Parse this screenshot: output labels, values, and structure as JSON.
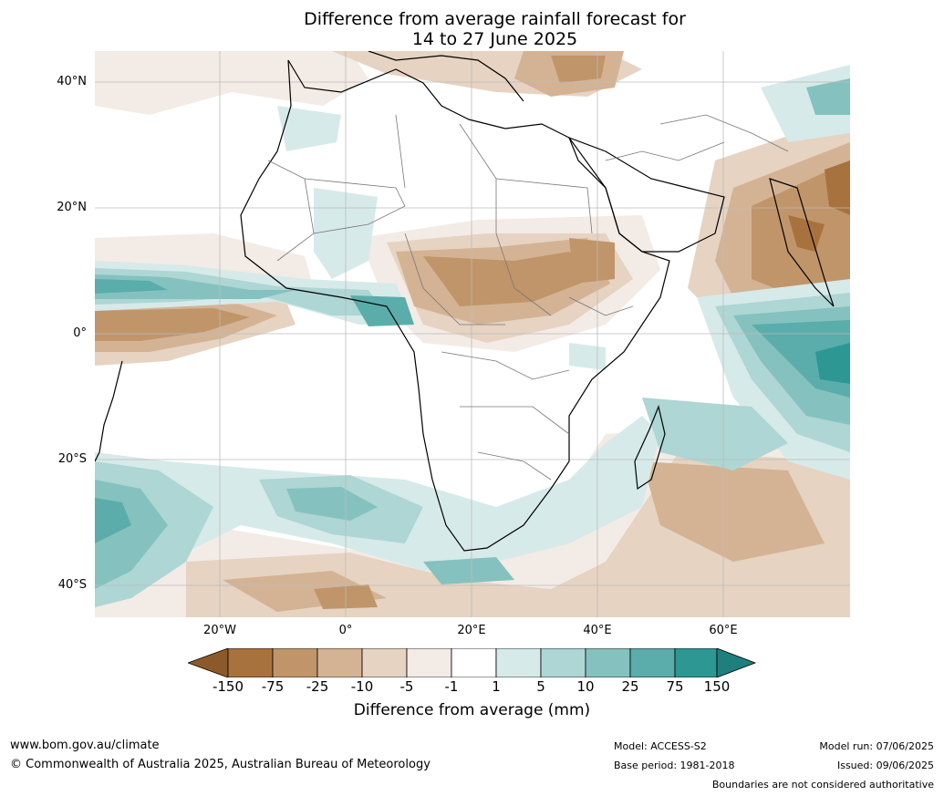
{
  "title": {
    "line1": "Difference from average rainfall forecast for",
    "line2": "14 to 27 June 2025"
  },
  "axes": {
    "y_labels": [
      "40°N",
      "20°N",
      "0°",
      "20°S",
      "40°S"
    ],
    "x_labels": [
      "20°W",
      "0°",
      "20°E",
      "40°E",
      "60°E"
    ]
  },
  "colorbar": {
    "ticks": [
      "-150",
      "-75",
      "-25",
      "-10",
      "-5",
      "-1",
      "1",
      "5",
      "10",
      "25",
      "75",
      "150"
    ],
    "colors": [
      "#8c5a2a",
      "#a8723f",
      "#c0956a",
      "#d4b394",
      "#e6d3c2",
      "#f3ebe5",
      "#ffffff",
      "#d6eae9",
      "#add6d4",
      "#85c2bf",
      "#5aadaa",
      "#2d9794",
      "#1e7f7c"
    ],
    "title": "Difference from average (mm)"
  },
  "footer": {
    "website": "www.bom.gov.au/climate",
    "copyright": "© Commonwealth of Australia 2025, Australian Bureau of Meteorology",
    "model": "Model: ACCESS-S2",
    "base_period": "Base period: 1981-2018",
    "model_run": "Model run: 07/06/2025",
    "issued": "Issued: 09/06/2025",
    "disclaimer": "Boundaries are not considered authoritative"
  }
}
